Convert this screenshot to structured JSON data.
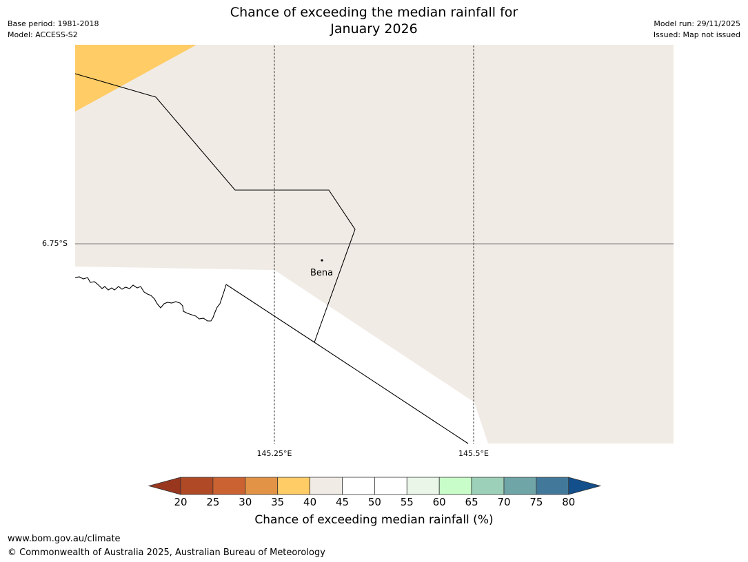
{
  "title_line1": "Chance of exceeding the median rainfall for",
  "title_line2": "January 2026",
  "meta": {
    "base_period": "Base period: 1981-2018",
    "model": "Model: ACCESS-S2",
    "model_run": "Model run: 29/11/2025",
    "issued": "Issued: Map not issued"
  },
  "map": {
    "lat_label": "6.75°S",
    "lon_labels": [
      "145.25°E",
      "145.5°E"
    ],
    "place": "Bena",
    "colors": {
      "band_35_40": "#ffcc66",
      "band_40_45": "#f0ebe5",
      "sea": "#ffffff",
      "border": "#000000",
      "grid": "#000000",
      "lat_line": "#777777"
    }
  },
  "colorbar": {
    "label": "Chance of exceeding median rainfall (%)",
    "ticks": [
      "20",
      "25",
      "30",
      "35",
      "40",
      "45",
      "50",
      "55",
      "60",
      "65",
      "70",
      "75",
      "80"
    ],
    "under_color": "#99361e",
    "over_color": "#134f8a",
    "colors": [
      "#b04a26",
      "#cb6231",
      "#e29345",
      "#ffcc66",
      "#f0ebe5",
      "#ffffff",
      "#ffffff",
      "#eaf7e8",
      "#c8fcc8",
      "#9dd0b8",
      "#6fa5a6",
      "#42799a"
    ]
  },
  "footer": {
    "url": "www.bom.gov.au/climate",
    "copyright": "© Commonwealth of Australia 2025, Australian Bureau of Meteorology"
  }
}
